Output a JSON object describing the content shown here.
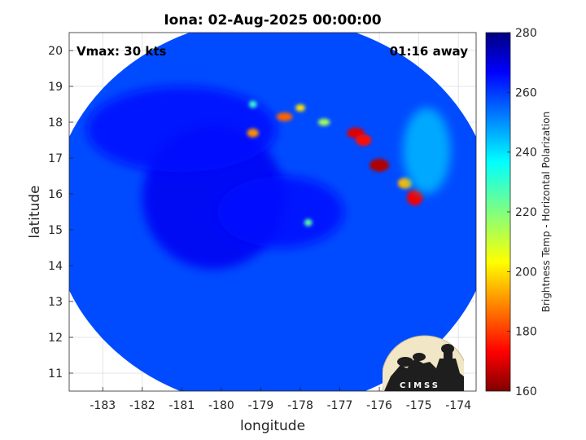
{
  "chart_data": {
    "type": "heatmap",
    "title": "Iona: 02-Aug-2025 00:00:00",
    "xlabel": "longitude",
    "ylabel": "latitude",
    "xlim": [
      -183.85,
      -173.55
    ],
    "ylim": [
      10.5,
      20.5
    ],
    "xticks": [
      -183,
      -182,
      -181,
      -180,
      -179,
      -178,
      -177,
      -176,
      -175,
      -174
    ],
    "yticks": [
      11,
      12,
      13,
      14,
      15,
      16,
      17,
      18,
      19,
      20
    ],
    "grid": true,
    "swath": {
      "center_lon": -178.7,
      "center_lat": 15.45,
      "radius_lon": 5.6,
      "radius_lat": 5.45,
      "background_value": 258
    },
    "features": [
      {
        "name": "inner core",
        "lon": -180.2,
        "lat": 15.9,
        "rlon": 1.8,
        "rlat": 2.0,
        "value": 268
      },
      {
        "name": "northwest arc",
        "lon": -181.0,
        "lat": 17.8,
        "rlon": 2.4,
        "rlat": 1.2,
        "value": 266
      },
      {
        "name": "central band",
        "lon": -178.5,
        "lat": 15.5,
        "rlon": 1.6,
        "rlat": 1.0,
        "value": 265
      },
      {
        "name": "outer rainband north",
        "lon": -176.6,
        "lat": 17.7,
        "rlon": 0.22,
        "rlat": 0.15,
        "value": 170
      },
      {
        "name": "outer rainband",
        "lon": -176.4,
        "lat": 17.5,
        "rlon": 0.2,
        "rlat": 0.16,
        "value": 175
      },
      {
        "name": "outer rainband core",
        "lon": -176.0,
        "lat": 16.8,
        "rlon": 0.25,
        "rlat": 0.18,
        "value": 165
      },
      {
        "name": "outer rainband south",
        "lon": -175.1,
        "lat": 15.9,
        "rlon": 0.2,
        "rlat": 0.22,
        "value": 172
      },
      {
        "name": "outer rainband tail",
        "lon": -175.35,
        "lat": 16.3,
        "rlon": 0.18,
        "rlat": 0.15,
        "value": 195
      },
      {
        "name": "convective cell 1",
        "lon": -178.4,
        "lat": 18.15,
        "rlon": 0.2,
        "rlat": 0.12,
        "value": 185
      },
      {
        "name": "convective cell 2",
        "lon": -179.2,
        "lat": 17.7,
        "rlon": 0.15,
        "rlat": 0.12,
        "value": 190
      },
      {
        "name": "convective cell 3",
        "lon": -178.0,
        "lat": 18.4,
        "rlon": 0.12,
        "rlat": 0.1,
        "value": 200
      },
      {
        "name": "convective cell 4",
        "lon": -177.4,
        "lat": 18.0,
        "rlon": 0.15,
        "rlat": 0.1,
        "value": 215
      },
      {
        "name": "convective cell 5",
        "lon": -177.8,
        "lat": 15.2,
        "rlon": 0.1,
        "rlat": 0.1,
        "value": 225
      },
      {
        "name": "convective cell 6",
        "lon": -179.2,
        "lat": 18.5,
        "rlon": 0.1,
        "rlat": 0.1,
        "value": 230
      },
      {
        "name": "eastern band",
        "lon": -174.8,
        "lat": 17.2,
        "rlon": 0.6,
        "rlat": 1.2,
        "value": 245
      }
    ],
    "colorbar": {
      "label": "Brightness Temp - Horizontal Polarization",
      "min": 160,
      "max": 280,
      "ticks": [
        160,
        180,
        200,
        220,
        240,
        260,
        280
      ],
      "colormap": "jet"
    },
    "annotations": {
      "vmax": "Vmax: 30 kts",
      "time_away": "01:16 away"
    },
    "logo": "CIMSS"
  },
  "colors": {
    "text": "#262626",
    "grid": "#dddddd",
    "axes": "#262626",
    "logo_bg": "#f1e6c6",
    "logo_fg": "#1e1e1e"
  }
}
